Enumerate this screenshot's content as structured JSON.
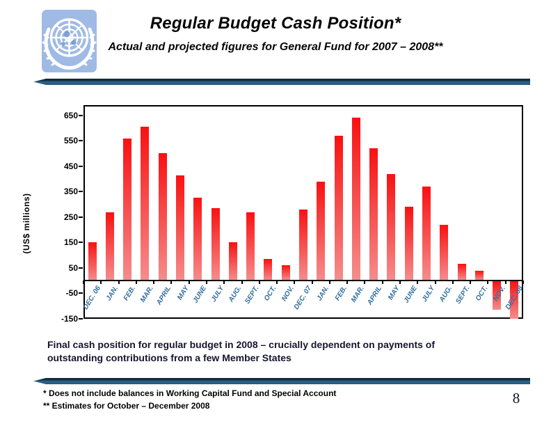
{
  "slide": {
    "title": "Regular Budget Cash Position*",
    "subtitle": "Actual and projected figures for General Fund for 2007 – 2008**",
    "takeaway_lines": [
      "Final cash position for regular budget in 2008 – crucially dependent on payments of",
      "outstanding contributions from a few Member States"
    ],
    "footnotes": [
      "* Does not include balances in Working Capital Fund and Special Account",
      "** Estimates for October – December 2008"
    ],
    "page_number": "8",
    "logo": "united-nations-emblem"
  },
  "chart_data": {
    "type": "bar",
    "title": "",
    "xlabel": "",
    "ylabel": "(US$ millions)",
    "categories": [
      "DEC. 06",
      "JAN.",
      "FEB.",
      "MAR.",
      "APRIL",
      "MAY",
      "JUNE",
      "JULY",
      "AUG.",
      "SEPT.",
      "OCT.",
      "NOV.",
      "DEC. 07",
      "JAN.",
      "FEB.",
      "MAR.",
      "APRIL",
      "MAY",
      "JUNE",
      "JULY",
      "AUG.",
      "SEPT.",
      "OCT.",
      "NOV.",
      "DEC. 08"
    ],
    "values": [
      150,
      270,
      560,
      605,
      500,
      415,
      325,
      285,
      150,
      270,
      85,
      60,
      280,
      390,
      570,
      640,
      520,
      420,
      290,
      370,
      220,
      65,
      40,
      -115,
      -150
    ],
    "yticks": [
      650,
      550,
      450,
      350,
      250,
      150,
      50,
      -50,
      -150
    ],
    "ylim": [
      -150,
      690
    ],
    "grid": false,
    "legend": "none"
  },
  "colors": {
    "bar_top": "#f91111",
    "bar_bottom": "#f58d8d",
    "x_label": "#336f9e",
    "divider_dark": "#0f2c3f",
    "divider_main": "#2e6389",
    "takeaway_text": "#15152e",
    "logo_bg": "#9fbae4"
  }
}
